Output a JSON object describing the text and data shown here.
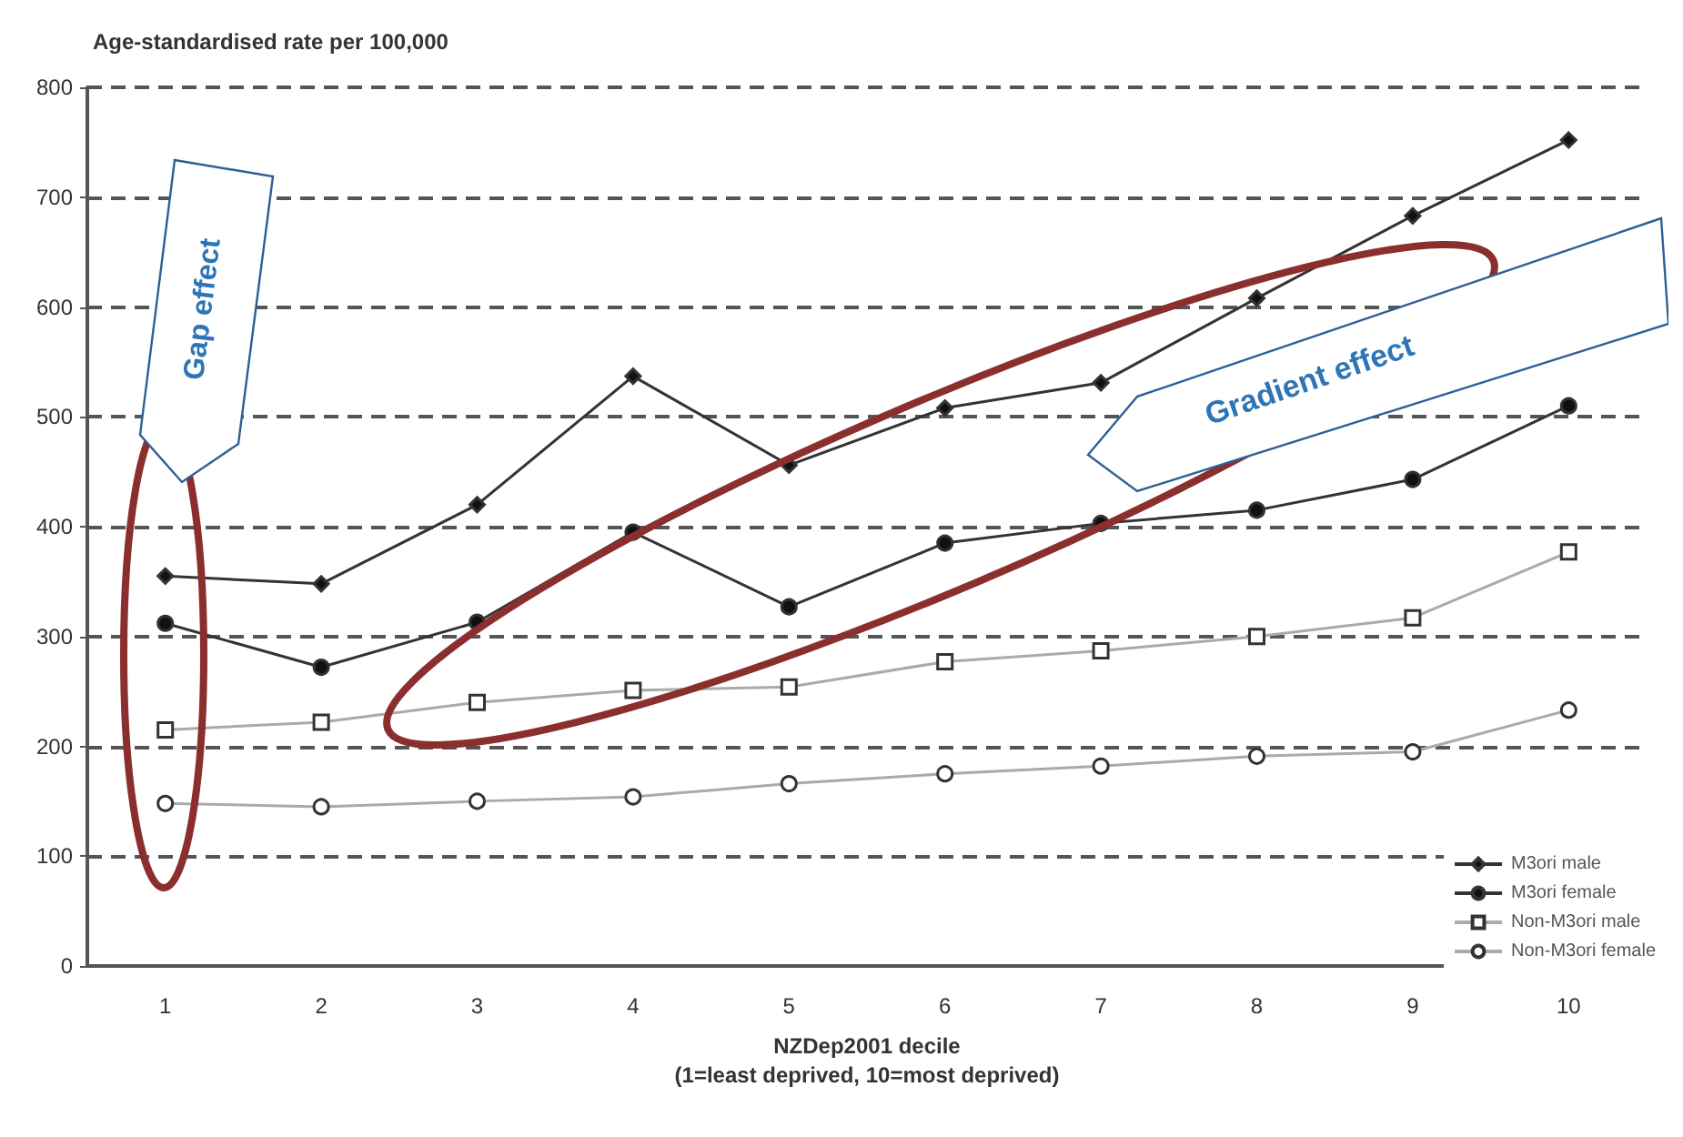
{
  "chart_data": {
    "type": "line",
    "title": "Age-standardised rate per 100,000",
    "xlabel": "NZDep2001 decile\n(1=least deprived, 10=most deprived)",
    "categories": [
      "1",
      "2",
      "3",
      "4",
      "5",
      "6",
      "7",
      "8",
      "9",
      "10"
    ],
    "series": [
      {
        "name": "M3ori male",
        "color": "#333333",
        "marker": "diamond",
        "values": [
          355,
          348,
          420,
          537,
          456,
          508,
          531,
          608,
          683,
          752
        ]
      },
      {
        "name": "M3ori female",
        "color": "#333333",
        "marker": "circle",
        "values": [
          312,
          272,
          313,
          395,
          327,
          385,
          403,
          415,
          443,
          510
        ]
      },
      {
        "name": "Non-M3ori male",
        "color": "#aaaaaa",
        "marker": "square",
        "values": [
          215,
          222,
          240,
          251,
          254,
          277,
          287,
          300,
          317,
          377
        ]
      },
      {
        "name": "Non-M3ori female",
        "color": "#aaaaaa",
        "marker": "circle",
        "values": [
          148,
          145,
          150,
          154,
          166,
          175,
          182,
          191,
          195,
          233
        ]
      }
    ],
    "ylim": [
      0,
      800
    ],
    "yticks": [
      0,
      100,
      200,
      300,
      400,
      500,
      600,
      700,
      800
    ],
    "grid": "y",
    "legend": "bottom right",
    "annotations": [
      "Gap effect",
      "Gradient effect"
    ]
  }
}
